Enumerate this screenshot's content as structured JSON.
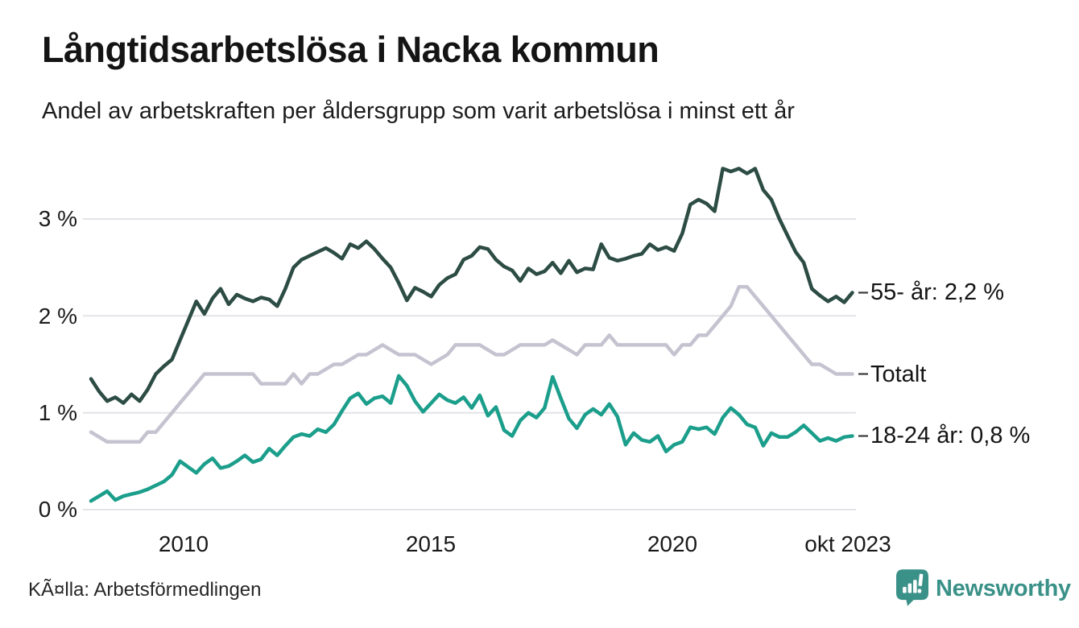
{
  "header": {
    "title": "Långtidsarbetslösa i Nacka kommun",
    "subtitle": "Andel av arbetskraften per åldersgrupp som varit arbetslösa i minst ett år"
  },
  "footer": {
    "source": "KÃ¤lla: Arbetsförmedlingen",
    "brand": "Newsworthy"
  },
  "colors": {
    "grid": "#e4e3e8",
    "end_tick": "#3a3a3a",
    "brand_teal": "#3a9188",
    "series_55": "#2c4c44",
    "series_total": "#c5c3d0",
    "series_1824": "#1b9e8b"
  },
  "chart_data": {
    "type": "line",
    "title": "Långtidsarbetslösa i Nacka kommun",
    "subtitle": "Andel av arbetskraften per åldersgrupp som varit arbetslösa i minst ett år",
    "xlabel": "",
    "ylabel": "",
    "xlim": [
      2008.08,
      2023.75
    ],
    "ylim": [
      0,
      3.72
    ],
    "grid": "horizontal",
    "legend_position": "right-end-labels",
    "x_ticks": [
      {
        "label": "2010",
        "year": 2010
      },
      {
        "label": "2015",
        "year": 2015
      },
      {
        "label": "2020",
        "year": 2020
      },
      {
        "label": "okt 2023",
        "year": 2023.75
      }
    ],
    "y_ticks": [
      {
        "value": 0,
        "label": "0 %"
      },
      {
        "value": 1,
        "label": "1 %"
      },
      {
        "value": 2,
        "label": "2 %"
      },
      {
        "value": 3,
        "label": "3 %"
      }
    ],
    "x_start": 2008.08,
    "x_end": 2023.75,
    "points_per_series": 95,
    "series": [
      {
        "name": "55- år",
        "end_label": "55- år: 2,2 %",
        "end_value": "2,2 %",
        "color": "#2c4c44",
        "values": [
          1.35,
          1.22,
          1.12,
          1.16,
          1.1,
          1.19,
          1.12,
          1.24,
          1.4,
          1.48,
          1.55,
          1.75,
          1.95,
          2.15,
          2.02,
          2.18,
          2.28,
          2.12,
          2.22,
          2.18,
          2.15,
          2.19,
          2.17,
          2.1,
          2.28,
          2.5,
          2.58,
          2.62,
          2.66,
          2.7,
          2.65,
          2.59,
          2.74,
          2.7,
          2.77,
          2.69,
          2.59,
          2.5,
          2.34,
          2.16,
          2.29,
          2.25,
          2.2,
          2.32,
          2.39,
          2.43,
          2.58,
          2.62,
          2.71,
          2.69,
          2.58,
          2.51,
          2.47,
          2.36,
          2.49,
          2.43,
          2.46,
          2.55,
          2.44,
          2.57,
          2.45,
          2.49,
          2.48,
          2.74,
          2.6,
          2.57,
          2.59,
          2.62,
          2.64,
          2.74,
          2.68,
          2.71,
          2.67,
          2.85,
          3.15,
          3.2,
          3.16,
          3.08,
          3.52,
          3.49,
          3.52,
          3.47,
          3.52,
          3.3,
          3.2,
          3.0,
          2.83,
          2.66,
          2.55,
          2.28,
          2.21,
          2.15,
          2.2,
          2.14,
          2.24
        ]
      },
      {
        "name": "Totalt",
        "end_label": "Totalt",
        "end_value": "1,4 %",
        "color": "#c5c3d0",
        "values": [
          0.8,
          0.75,
          0.7,
          0.7,
          0.7,
          0.7,
          0.7,
          0.8,
          0.8,
          0.9,
          1.0,
          1.1,
          1.2,
          1.3,
          1.4,
          1.4,
          1.4,
          1.4,
          1.4,
          1.4,
          1.4,
          1.3,
          1.3,
          1.3,
          1.3,
          1.4,
          1.3,
          1.4,
          1.4,
          1.45,
          1.5,
          1.5,
          1.55,
          1.6,
          1.6,
          1.65,
          1.7,
          1.65,
          1.6,
          1.6,
          1.6,
          1.55,
          1.5,
          1.55,
          1.6,
          1.7,
          1.7,
          1.7,
          1.7,
          1.65,
          1.6,
          1.6,
          1.65,
          1.7,
          1.7,
          1.7,
          1.7,
          1.75,
          1.7,
          1.65,
          1.6,
          1.7,
          1.7,
          1.7,
          1.8,
          1.7,
          1.7,
          1.7,
          1.7,
          1.7,
          1.7,
          1.7,
          1.6,
          1.7,
          1.7,
          1.8,
          1.8,
          1.9,
          2.0,
          2.1,
          2.3,
          2.3,
          2.2,
          2.1,
          2.0,
          1.9,
          1.8,
          1.7,
          1.6,
          1.5,
          1.5,
          1.45,
          1.4,
          1.4,
          1.4
        ]
      },
      {
        "name": "18-24 år",
        "end_label": "18-24 år: 0,8 %",
        "end_value": "0,8 %",
        "color": "#1b9e8b",
        "values": [
          0.09,
          0.14,
          0.19,
          0.1,
          0.14,
          0.16,
          0.18,
          0.21,
          0.25,
          0.29,
          0.36,
          0.5,
          0.44,
          0.38,
          0.47,
          0.53,
          0.43,
          0.45,
          0.5,
          0.56,
          0.49,
          0.52,
          0.63,
          0.56,
          0.66,
          0.75,
          0.78,
          0.76,
          0.83,
          0.8,
          0.88,
          1.02,
          1.15,
          1.2,
          1.09,
          1.15,
          1.17,
          1.1,
          1.38,
          1.28,
          1.12,
          1.01,
          1.1,
          1.19,
          1.13,
          1.1,
          1.16,
          1.05,
          1.18,
          0.97,
          1.06,
          0.82,
          0.76,
          0.92,
          1.0,
          0.95,
          1.05,
          1.37,
          1.15,
          0.94,
          0.84,
          0.98,
          1.04,
          0.98,
          1.09,
          0.96,
          0.67,
          0.79,
          0.72,
          0.7,
          0.76,
          0.6,
          0.67,
          0.7,
          0.85,
          0.83,
          0.85,
          0.78,
          0.95,
          1.05,
          0.98,
          0.88,
          0.85,
          0.66,
          0.79,
          0.75,
          0.75,
          0.8,
          0.87,
          0.79,
          0.71,
          0.74,
          0.71,
          0.75,
          0.76
        ]
      }
    ]
  }
}
